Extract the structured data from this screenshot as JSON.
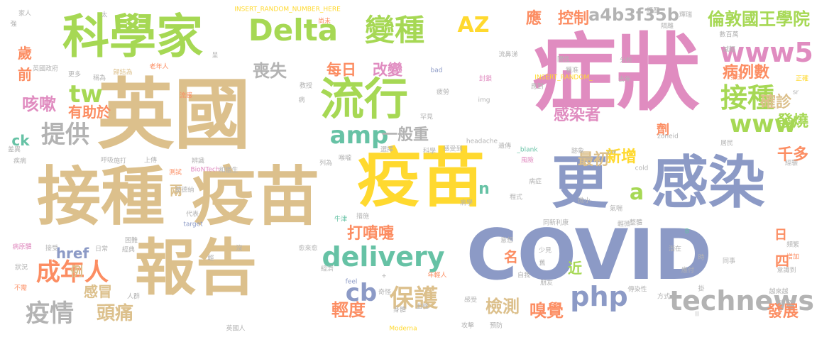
{
  "words": [
    {
      "text": "症狀",
      "color": "#e08cc0"
    },
    {
      "text": "英國",
      "color": "#dcc08c"
    },
    {
      "text": "COVID",
      "color": "#8c9ac6"
    },
    {
      "text": "接種",
      "color": "#dcc08c"
    },
    {
      "text": "疫苗",
      "color": "#dcc08c"
    },
    {
      "text": "疫苗",
      "color": "#ffd92f"
    },
    {
      "text": "報告",
      "color": "#dcc08c"
    },
    {
      "text": "更",
      "color": "#8c9ac6"
    },
    {
      "text": "感染",
      "color": "#8c9ac6"
    },
    {
      "text": "科學家",
      "color": "#a6d854"
    },
    {
      "text": "流行",
      "color": "#a6d854"
    },
    {
      "text": "Delta",
      "color": "#a6d854"
    },
    {
      "text": "變種",
      "color": "#a6d854"
    },
    {
      "text": "www5",
      "color": "#e08cc0"
    },
    {
      "text": "接種",
      "color": "#a6d854"
    },
    {
      "text": "technews",
      "color": "#b3b3b3"
    },
    {
      "text": "php",
      "color": "#8c9ac6"
    },
    {
      "text": "delivery",
      "color": "#66c2a5"
    },
    {
      "text": "amp",
      "color": "#66c2a5"
    },
    {
      "text": "www",
      "color": "#a6d854"
    },
    {
      "text": "成年人",
      "color": "#fc8d62"
    },
    {
      "text": "保護",
      "color": "#dcc08c"
    },
    {
      "text": "cb",
      "color": "#8c9ac6"
    },
    {
      "text": "倫敦國王學院",
      "color": "#a6d854"
    },
    {
      "text": "a4b3f35b",
      "color": "#b3b3b3"
    },
    {
      "text": "提供",
      "color": "#b3b3b3"
    },
    {
      "text": "疫情",
      "color": "#b3b3b3"
    },
    {
      "text": "頭痛",
      "color": "#dcc08c"
    },
    {
      "text": "tw",
      "color": "#a6d854"
    },
    {
      "text": "AZ",
      "color": "#ffd92f"
    },
    {
      "text": "a",
      "color": "#a6d854"
    },
    {
      "text": "咳嗽",
      "color": "#e08cc0"
    },
    {
      "text": "喪失",
      "color": "#b3b3b3"
    },
    {
      "text": "每日",
      "color": "#fc8d62"
    },
    {
      "text": "改變",
      "color": "#e08cc0"
    },
    {
      "text": "控制",
      "color": "#fc8d62"
    },
    {
      "text": "應",
      "color": "#fc8d62"
    },
    {
      "text": "病例數",
      "color": "#fc8d62"
    },
    {
      "text": "確診",
      "color": "#dcc08c"
    },
    {
      "text": "發燒",
      "color": "#a6d854"
    },
    {
      "text": "感染者",
      "color": "#e08cc0"
    },
    {
      "text": "一般重",
      "color": "#b3b3b3"
    },
    {
      "text": "打噴嚏",
      "color": "#fc8d62"
    },
    {
      "text": "檢測",
      "color": "#dcc08c"
    },
    {
      "text": "嗅覺",
      "color": "#fc8d62"
    },
    {
      "text": "輕度",
      "color": "#fc8d62"
    },
    {
      "text": "發展",
      "color": "#fc8d62"
    },
    {
      "text": "新增",
      "color": "#ffd92f"
    },
    {
      "text": "最初",
      "color": "#dcc08c"
    },
    {
      "text": "千多",
      "color": "#fc8d62"
    },
    {
      "text": "href",
      "color": "#8c9ac6"
    },
    {
      "text": "有助於",
      "color": "#fc8d62"
    },
    {
      "text": "ck",
      "color": "#66c2a5"
    },
    {
      "text": "n",
      "color": "#66c2a5"
    },
    {
      "text": "感冒",
      "color": "#dcc08c"
    },
    {
      "text": "例",
      "color": "#dcc08c"
    },
    {
      "text": "兩",
      "color": "#dcc08c"
    },
    {
      "text": "四",
      "color": "#fc8d62"
    },
    {
      "text": "日",
      "color": "#fc8d62"
    },
    {
      "text": "名",
      "color": "#fc8d62"
    },
    {
      "text": "近",
      "color": "#a6d854"
    },
    {
      "text": "劑",
      "color": "#fc8d62"
    },
    {
      "text": "歲",
      "color": "#fc8d62"
    },
    {
      "text": "前",
      "color": "#fc8d62"
    },
    {
      "text": "INSERT_RANDOM_NUMBER_HERE",
      "color": "#ffd92f"
    },
    {
      "text": "INSERT_RANDOM_",
      "color": "#ffd92f"
    },
    {
      "text": "bad",
      "color": "#8c9ac6"
    },
    {
      "text": "img",
      "color": "#b3b3b3"
    },
    {
      "text": "headache",
      "color": "#b3b3b3"
    },
    {
      "text": "_blank",
      "color": "#66c2a5"
    },
    {
      "text": "BioNTech",
      "color": "#e08cc0"
    },
    {
      "text": "Moderna",
      "color": "#ffd92f"
    },
    {
      "text": "target",
      "color": "#8c9ac6"
    },
    {
      "text": "feel",
      "color": "#8c9ac6"
    },
    {
      "text": "cold",
      "color": "#b3b3b3"
    },
    {
      "text": "zoneid",
      "color": "#b3b3b3"
    },
    {
      "text": "aw",
      "color": "#b3b3b3"
    },
    {
      "text": "家人",
      "color": "#b3b3b3"
    },
    {
      "text": "強",
      "color": "#b3b3b3"
    },
    {
      "text": "太",
      "color": "#b3b3b3"
    },
    {
      "text": "尚未",
      "color": "#fc8d62"
    },
    {
      "text": "老年人",
      "color": "#fc8d62"
    },
    {
      "text": "英國政府",
      "color": "#b3b3b3"
    },
    {
      "text": "歸結為",
      "color": "#dcc08c"
    },
    {
      "text": "更多",
      "color": "#b3b3b3"
    },
    {
      "text": "稱為",
      "color": "#b3b3b3"
    },
    {
      "text": "流感",
      "color": "#fc8d62"
    },
    {
      "text": "教授",
      "color": "#b3b3b3"
    },
    {
      "text": "疲勞",
      "color": "#b3b3b3"
    },
    {
      "text": "封鎖",
      "color": "#e08cc0"
    },
    {
      "text": "流鼻涕",
      "color": "#b3b3b3"
    },
    {
      "text": "經歷",
      "color": "#b3b3b3"
    },
    {
      "text": "陽性",
      "color": "#b3b3b3"
    },
    {
      "text": "獲准",
      "color": "#b3b3b3"
    },
    {
      "text": "應對",
      "color": "#b3b3b3"
    },
    {
      "text": "分析",
      "color": "#b3b3b3"
    },
    {
      "text": "減輕",
      "color": "#b3b3b3"
    },
    {
      "text": "數百萬",
      "color": "#b3b3b3"
    },
    {
      "text": "第五",
      "color": "#fc8d62"
    },
    {
      "text": "正確",
      "color": "#ffd92f"
    },
    {
      "text": "去年",
      "color": "#b3b3b3"
    },
    {
      "text": "差異",
      "color": "#b3b3b3"
    },
    {
      "text": "呼吸",
      "color": "#b3b3b3"
    },
    {
      "text": "疾病",
      "color": "#b3b3b3"
    },
    {
      "text": "施打",
      "color": "#b3b3b3"
    },
    {
      "text": "上傳",
      "color": "#b3b3b3"
    },
    {
      "text": "辨識",
      "color": "#b3b3b3"
    },
    {
      "text": "測試",
      "color": "#fc8d62"
    },
    {
      "text": "和鑑生",
      "color": "#b3b3b3"
    },
    {
      "text": "列為",
      "color": "#b3b3b3"
    },
    {
      "text": "喉嚨",
      "color": "#b3b3b3"
    },
    {
      "text": "選擇",
      "color": "#b3b3b3"
    },
    {
      "text": "科學",
      "color": "#b3b3b3"
    },
    {
      "text": "感受到",
      "color": "#b3b3b3"
    },
    {
      "text": "遺傳",
      "color": "#b3b3b3"
    },
    {
      "text": "跡象",
      "color": "#b3b3b3"
    },
    {
      "text": "居民",
      "color": "#b3b3b3"
    },
    {
      "text": "經驗",
      "color": "#b3b3b3"
    },
    {
      "text": "罕見",
      "color": "#b3b3b3"
    },
    {
      "text": "輝瑞",
      "color": "#b3b3b3"
    },
    {
      "text": "隔離",
      "color": "#b3b3b3"
    },
    {
      "text": "莫德納",
      "color": "#b3b3b3"
    },
    {
      "text": "代表",
      "color": "#b3b3b3"
    },
    {
      "text": "牛津",
      "color": "#66c2a5"
    },
    {
      "text": "病學",
      "color": "#b3b3b3"
    },
    {
      "text": "程式",
      "color": "#b3b3b3"
    },
    {
      "text": "微小",
      "color": "#b3b3b3"
    },
    {
      "text": "氣喘",
      "color": "#b3b3b3"
    },
    {
      "text": "風險",
      "color": "#e08cc0"
    },
    {
      "text": "整體",
      "color": "#b3b3b3"
    },
    {
      "text": "輕微",
      "color": "#b3b3b3"
    },
    {
      "text": "同新利康",
      "color": "#b3b3b3"
    },
    {
      "text": "措施",
      "color": "#b3b3b3"
    },
    {
      "text": "病原體",
      "color": "#e08cc0"
    },
    {
      "text": "接受",
      "color": "#b3b3b3"
    },
    {
      "text": "日常",
      "color": "#b3b3b3"
    },
    {
      "text": "經典",
      "color": "#b3b3b3"
    },
    {
      "text": "困難",
      "color": "#b3b3b3"
    },
    {
      "text": "沒",
      "color": "#b3b3b3"
    },
    {
      "text": "輕",
      "color": "#b3b3b3"
    },
    {
      "text": "愈來愈",
      "color": "#b3b3b3"
    },
    {
      "text": "意想",
      "color": "#b3b3b3"
    },
    {
      "text": "少見",
      "color": "#b3b3b3"
    },
    {
      "text": "潛在",
      "color": "#b3b3b3"
    },
    {
      "text": "頻繁",
      "color": "#b3b3b3"
    },
    {
      "text": "增加",
      "color": "#fc8d62"
    },
    {
      "text": "同事",
      "color": "#b3b3b3"
    },
    {
      "text": "應付",
      "color": "#b3b3b3"
    },
    {
      "text": "意識到",
      "color": "#b3b3b3"
    },
    {
      "text": "狀況",
      "color": "#b3b3b3"
    },
    {
      "text": "經濟",
      "color": "#b3b3b3"
    },
    {
      "text": "年輕人",
      "color": "#fc8d62"
    },
    {
      "text": "自我",
      "color": "#b3b3b3"
    },
    {
      "text": "朋友",
      "color": "#b3b3b3"
    },
    {
      "text": "不需",
      "color": "#fc8d62"
    },
    {
      "text": "人群",
      "color": "#b3b3b3"
    },
    {
      "text": "奇怪",
      "color": "#b3b3b3"
    },
    {
      "text": "血栓",
      "color": "#b3b3b3"
    },
    {
      "text": "感受",
      "color": "#b3b3b3"
    },
    {
      "text": "傳染性",
      "color": "#b3b3b3"
    },
    {
      "text": "方式",
      "color": "#b3b3b3"
    },
    {
      "text": "越來越",
      "color": "#b3b3b3"
    },
    {
      "text": "本來",
      "color": "#b3b3b3"
    },
    {
      "text": "英國人",
      "color": "#b3b3b3"
    },
    {
      "text": "身體",
      "color": "#b3b3b3"
    },
    {
      "text": "攻擊",
      "color": "#b3b3b3"
    },
    {
      "text": "預防",
      "color": "#b3b3b3"
    },
    {
      "text": "呈",
      "color": "#b3b3b3"
    },
    {
      "text": "病",
      "color": "#b3b3b3"
    },
    {
      "text": "時",
      "color": "#b3b3b3"
    },
    {
      "text": "舊",
      "color": "#b3b3b3"
    },
    {
      "text": "掛",
      "color": "#b3b3b3"
    },
    {
      "text": "病症",
      "color": "#b3b3b3"
    },
    {
      "text": "B",
      "color": "#66c2a5"
    },
    {
      "text": "sr",
      "color": "#b3b3b3"
    },
    {
      "text": "+",
      "color": "#b3b3b3"
    },
    {
      "text": "ll",
      "color": "#b3b3b3"
    }
  ]
}
